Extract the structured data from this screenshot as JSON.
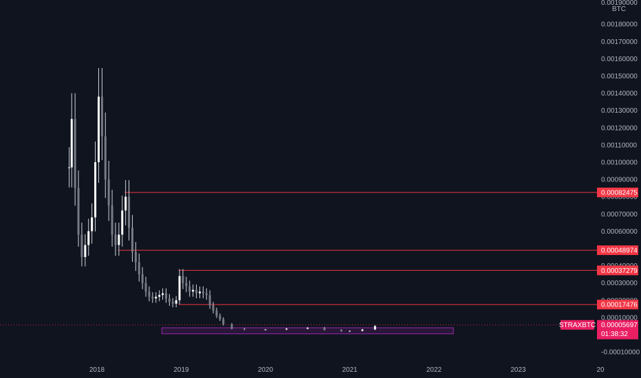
{
  "chart_data": {
    "type": "candlestick",
    "symbol": "STRAXBTC",
    "currency": "BTC",
    "x_ticks": [
      "2018",
      "2019",
      "2020",
      "2021",
      "2022",
      "2023",
      "20"
    ],
    "y_ticks": [
      "0.00180000",
      "0.00170000",
      "0.00160000",
      "0.00150000",
      "0.00140000",
      "0.00130000",
      "0.00120000",
      "0.00110000",
      "0.00100000",
      "0.00090000",
      "0.00080000",
      "0.00070000",
      "0.00060000",
      "0.00050000",
      "0.00040000",
      "0.00030000",
      "0.00020000",
      "0.00010000",
      "0.00000000",
      "-0.00010000"
    ],
    "y_tick_values": [
      0.0018,
      0.0017,
      0.0016,
      0.0015,
      0.0014,
      0.0013,
      0.0012,
      0.0011,
      0.001,
      0.0009,
      0.0008,
      0.0007,
      0.0006,
      0.0005,
      0.0004,
      0.0003,
      0.0002,
      0.0001,
      0,
      -0.0001
    ],
    "ylim": [
      -0.00013,
      0.0019
    ],
    "top_tick_partial": "0.00190000",
    "price_levels": [
      {
        "label": "0.00082475",
        "value": 0.00082475,
        "start": "2018.33",
        "color": "#f23645"
      },
      {
        "label": "0.00048974",
        "value": 0.00048974,
        "start": "2018.25",
        "color": "#f23645"
      },
      {
        "label": "0.00037279",
        "value": 0.00037279,
        "start": "2018.97",
        "color": "#f23645"
      },
      {
        "label": "0.00017476",
        "value": 0.00017476,
        "start": "2018.97",
        "color": "#f23645"
      }
    ],
    "current": {
      "label": "0.00005697",
      "value": 5.697e-05,
      "countdown": "01:38:32",
      "color": "#e91e63"
    },
    "zone": {
      "x_start": "2018.77",
      "x_end": "2022.23",
      "y_top": 4e-05,
      "y_bottom": 5e-06,
      "color": "#9c27b0"
    },
    "candles_close_approx": [
      {
        "t": 2017.67,
        "v": 0.00097
      },
      {
        "t": 2017.7,
        "v": 0.00125
      },
      {
        "t": 2017.74,
        "v": 0.00085
      },
      {
        "t": 2017.78,
        "v": 0.00058
      },
      {
        "t": 2017.82,
        "v": 0.00045
      },
      {
        "t": 2017.86,
        "v": 0.00052
      },
      {
        "t": 2017.9,
        "v": 0.0006
      },
      {
        "t": 2017.94,
        "v": 0.00068
      },
      {
        "t": 2017.98,
        "v": 0.001
      },
      {
        "t": 2018.02,
        "v": 0.00138
      },
      {
        "t": 2018.06,
        "v": 0.00115
      },
      {
        "t": 2018.1,
        "v": 0.0009
      },
      {
        "t": 2018.14,
        "v": 0.00075
      },
      {
        "t": 2018.18,
        "v": 0.00058
      },
      {
        "t": 2018.22,
        "v": 0.00052
      },
      {
        "t": 2018.26,
        "v": 0.00058
      },
      {
        "t": 2018.3,
        "v": 0.00072
      },
      {
        "t": 2018.34,
        "v": 0.0008
      },
      {
        "t": 2018.38,
        "v": 0.00062
      },
      {
        "t": 2018.42,
        "v": 0.00048
      },
      {
        "t": 2018.46,
        "v": 0.00042
      },
      {
        "t": 2018.5,
        "v": 0.00035
      },
      {
        "t": 2018.54,
        "v": 0.0003
      },
      {
        "t": 2018.58,
        "v": 0.00025
      },
      {
        "t": 2018.62,
        "v": 0.00022
      },
      {
        "t": 2018.66,
        "v": 0.00021
      },
      {
        "t": 2018.7,
        "v": 0.00022
      },
      {
        "t": 2018.74,
        "v": 0.00023
      },
      {
        "t": 2018.78,
        "v": 0.00024
      },
      {
        "t": 2018.82,
        "v": 0.00021
      },
      {
        "t": 2018.86,
        "v": 0.00019
      },
      {
        "t": 2018.9,
        "v": 0.00018
      },
      {
        "t": 2018.94,
        "v": 0.0002
      },
      {
        "t": 2018.98,
        "v": 0.00034
      },
      {
        "t": 2019.02,
        "v": 0.0003
      },
      {
        "t": 2019.06,
        "v": 0.00028
      },
      {
        "t": 2019.1,
        "v": 0.00025
      },
      {
        "t": 2019.14,
        "v": 0.00026
      },
      {
        "t": 2019.18,
        "v": 0.00024
      },
      {
        "t": 2019.22,
        "v": 0.00025
      },
      {
        "t": 2019.26,
        "v": 0.00024
      },
      {
        "t": 2019.3,
        "v": 0.00023
      },
      {
        "t": 2019.34,
        "v": 0.00017
      },
      {
        "t": 2019.38,
        "v": 0.00014
      },
      {
        "t": 2019.42,
        "v": 0.00011
      },
      {
        "t": 2019.46,
        "v": 9e-05
      },
      {
        "t": 2019.5,
        "v": 6e-05
      },
      {
        "t": 2019.6,
        "v": 3.5e-05
      },
      {
        "t": 2019.75,
        "v": 3e-05
      },
      {
        "t": 2020.0,
        "v": 3e-05
      },
      {
        "t": 2020.25,
        "v": 3.5e-05
      },
      {
        "t": 2020.5,
        "v": 4e-05
      },
      {
        "t": 2020.7,
        "v": 2.8e-05
      },
      {
        "t": 2020.9,
        "v": 2e-05
      },
      {
        "t": 2021.0,
        "v": 2.2e-05
      },
      {
        "t": 2021.15,
        "v": 3e-05
      },
      {
        "t": 2021.3,
        "v": 5e-05
      }
    ]
  }
}
